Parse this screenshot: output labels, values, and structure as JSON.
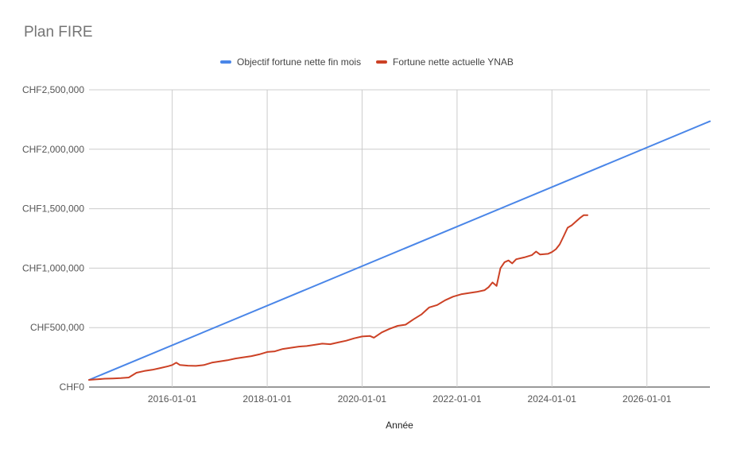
{
  "chart_data": {
    "type": "line",
    "title": "Plan FIRE",
    "xlabel": "Année",
    "ylabel": "",
    "x_start": "2014-04-01",
    "x_end": "2027-05-01",
    "ylim": [
      0,
      2500000
    ],
    "y_ticks": [
      {
        "value": 0,
        "label": "CHF0"
      },
      {
        "value": 500000,
        "label": "CHF500,000"
      },
      {
        "value": 1000000,
        "label": "CHF1,000,000"
      },
      {
        "value": 1500000,
        "label": "CHF1,500,000"
      },
      {
        "value": 2000000,
        "label": "CHF2,000,000"
      },
      {
        "value": 2500000,
        "label": "CHF2,500,000"
      }
    ],
    "x_ticks": [
      "2016-01-01",
      "2018-01-01",
      "2020-01-01",
      "2022-01-01",
      "2024-01-01",
      "2026-01-01"
    ],
    "grid": true,
    "legend_position": "top-center",
    "series": [
      {
        "name": "Objectif fortune nette fin mois",
        "color": "#4a86e8",
        "points": [
          [
            "2014-04-01",
            60000
          ],
          [
            "2027-05-01",
            2235000
          ]
        ]
      },
      {
        "name": "Fortune nette actuelle YNAB",
        "color": "#cc4125",
        "points": [
          [
            "2014-04-01",
            60000
          ],
          [
            "2014-06-01",
            65000
          ],
          [
            "2014-08-01",
            70000
          ],
          [
            "2014-10-01",
            72000
          ],
          [
            "2014-12-01",
            75000
          ],
          [
            "2015-02-01",
            80000
          ],
          [
            "2015-04-01",
            120000
          ],
          [
            "2015-06-01",
            135000
          ],
          [
            "2015-08-01",
            145000
          ],
          [
            "2015-10-01",
            160000
          ],
          [
            "2015-12-01",
            175000
          ],
          [
            "2016-01-01",
            185000
          ],
          [
            "2016-02-01",
            205000
          ],
          [
            "2016-03-01",
            185000
          ],
          [
            "2016-05-01",
            180000
          ],
          [
            "2016-07-01",
            178000
          ],
          [
            "2016-09-01",
            185000
          ],
          [
            "2016-11-01",
            205000
          ],
          [
            "2017-01-01",
            215000
          ],
          [
            "2017-03-01",
            225000
          ],
          [
            "2017-05-01",
            240000
          ],
          [
            "2017-07-01",
            250000
          ],
          [
            "2017-09-01",
            260000
          ],
          [
            "2017-11-01",
            275000
          ],
          [
            "2018-01-01",
            295000
          ],
          [
            "2018-03-01",
            300000
          ],
          [
            "2018-05-01",
            320000
          ],
          [
            "2018-07-01",
            330000
          ],
          [
            "2018-09-01",
            340000
          ],
          [
            "2018-11-01",
            345000
          ],
          [
            "2019-01-01",
            355000
          ],
          [
            "2019-03-01",
            365000
          ],
          [
            "2019-05-01",
            360000
          ],
          [
            "2019-07-01",
            375000
          ],
          [
            "2019-09-01",
            390000
          ],
          [
            "2019-11-01",
            410000
          ],
          [
            "2020-01-01",
            425000
          ],
          [
            "2020-03-01",
            430000
          ],
          [
            "2020-04-01",
            415000
          ],
          [
            "2020-06-01",
            460000
          ],
          [
            "2020-08-01",
            490000
          ],
          [
            "2020-10-01",
            515000
          ],
          [
            "2020-12-01",
            525000
          ],
          [
            "2021-02-01",
            570000
          ],
          [
            "2021-04-01",
            610000
          ],
          [
            "2021-06-01",
            670000
          ],
          [
            "2021-08-01",
            690000
          ],
          [
            "2021-10-01",
            730000
          ],
          [
            "2021-12-01",
            760000
          ],
          [
            "2022-02-01",
            780000
          ],
          [
            "2022-04-01",
            790000
          ],
          [
            "2022-06-01",
            800000
          ],
          [
            "2022-08-01",
            815000
          ],
          [
            "2022-09-01",
            840000
          ],
          [
            "2022-10-01",
            880000
          ],
          [
            "2022-11-01",
            850000
          ],
          [
            "2022-12-01",
            1000000
          ],
          [
            "2023-01-01",
            1050000
          ],
          [
            "2023-02-01",
            1065000
          ],
          [
            "2023-03-01",
            1040000
          ],
          [
            "2023-04-01",
            1075000
          ],
          [
            "2023-06-01",
            1090000
          ],
          [
            "2023-08-01",
            1110000
          ],
          [
            "2023-09-01",
            1140000
          ],
          [
            "2023-10-01",
            1115000
          ],
          [
            "2023-12-01",
            1120000
          ],
          [
            "2024-01-01",
            1135000
          ],
          [
            "2024-02-01",
            1160000
          ],
          [
            "2024-03-01",
            1200000
          ],
          [
            "2024-04-01",
            1270000
          ],
          [
            "2024-05-01",
            1340000
          ],
          [
            "2024-06-01",
            1360000
          ],
          [
            "2024-07-01",
            1390000
          ],
          [
            "2024-08-01",
            1420000
          ],
          [
            "2024-09-01",
            1445000
          ],
          [
            "2024-10-01",
            1445000
          ]
        ]
      }
    ]
  }
}
